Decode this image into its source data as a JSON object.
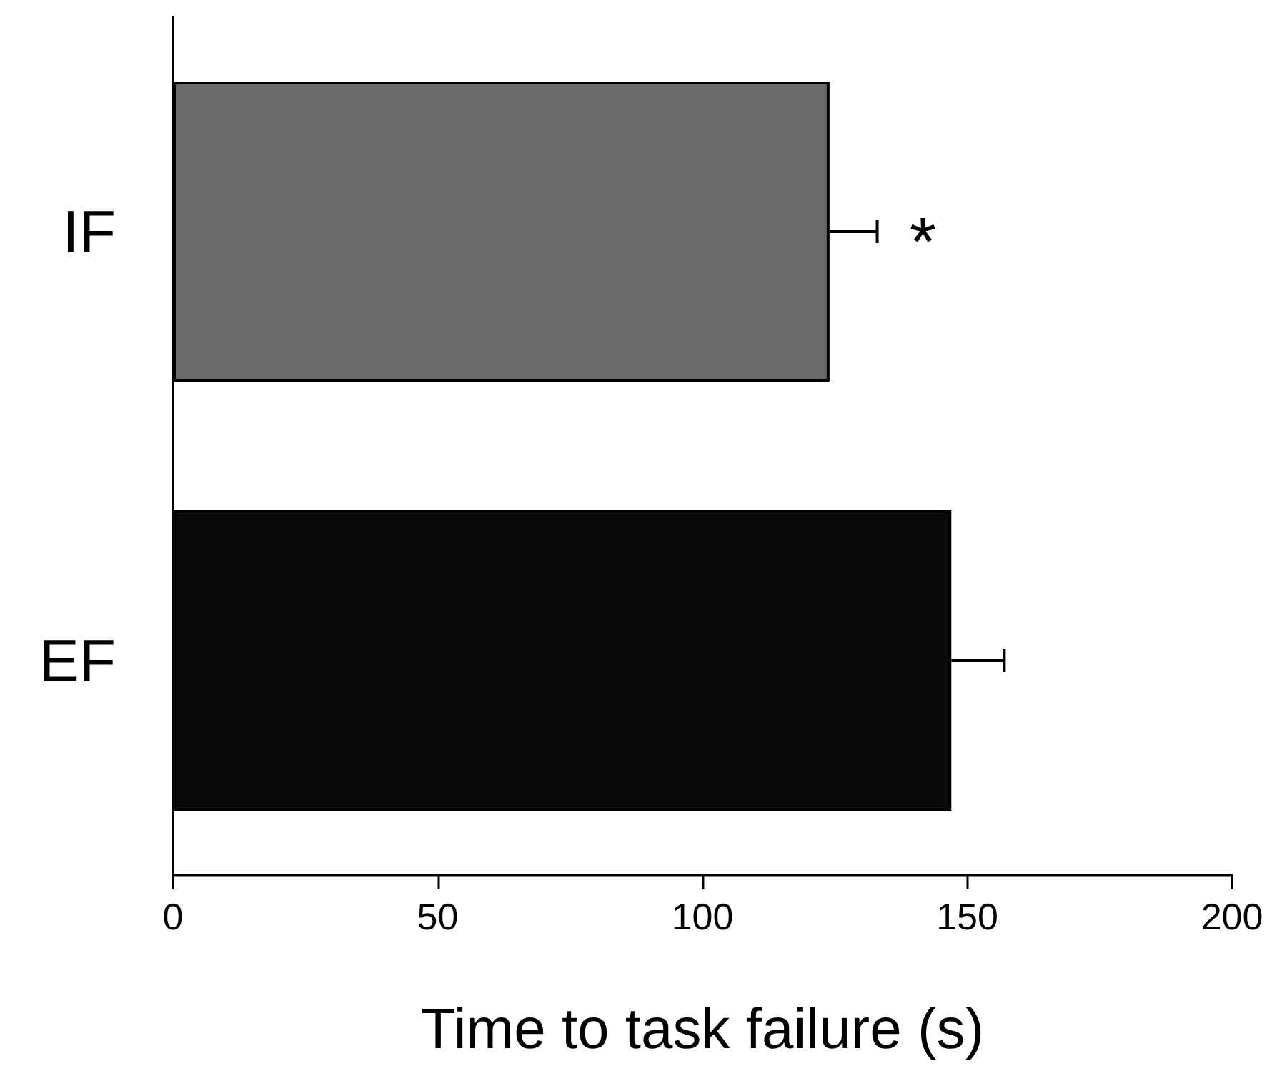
{
  "chart_data": {
    "type": "bar",
    "orientation": "horizontal",
    "xlabel": "Time to task failure (s)",
    "categories": [
      "IF",
      "EF"
    ],
    "values": [
      124,
      147
    ],
    "colors": [
      "#6b6b6b",
      "#0a0a0a"
    ],
    "errors": [
      [
        124,
        133
      ],
      [
        147,
        157
      ]
    ],
    "xlim": [
      0,
      200
    ],
    "xticks": [
      0,
      50,
      100,
      150,
      200
    ],
    "grid": false,
    "annotations": [
      "*"
    ]
  }
}
